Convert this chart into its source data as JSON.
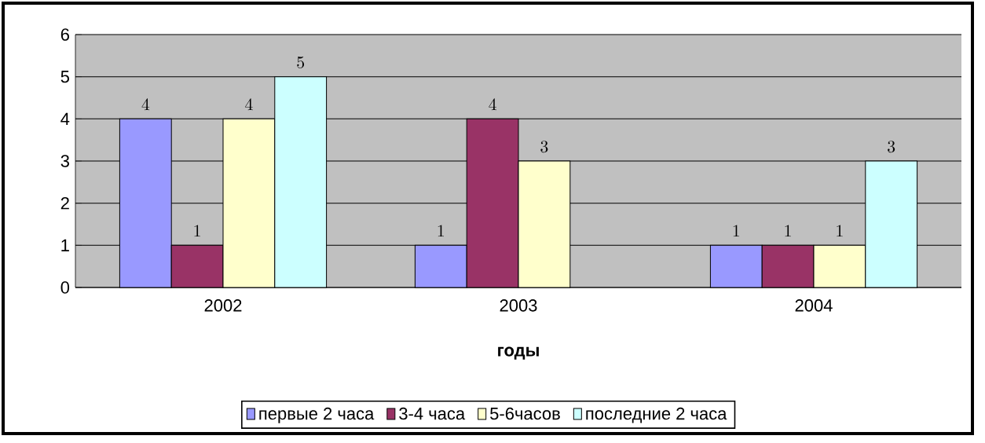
{
  "chart_data": {
    "type": "bar",
    "xlabel": "годы",
    "categories": [
      "2002",
      "2003",
      "2004"
    ],
    "series": [
      {
        "name": "первые 2 часа",
        "color": "#9999ff",
        "values": [
          4,
          1,
          1
        ]
      },
      {
        "name": "3-4 часа",
        "color": "#993366",
        "values": [
          1,
          4,
          1
        ]
      },
      {
        "name": "5-6часов",
        "color": "#ffffcc",
        "values": [
          4,
          3,
          1
        ]
      },
      {
        "name": "последние 2 часа",
        "color": "#ccffff",
        "values": [
          5,
          null,
          3
        ]
      }
    ],
    "ylim": [
      0,
      6
    ],
    "yticks": [
      0,
      1,
      2,
      3,
      4,
      5,
      6
    ],
    "grid": "y",
    "legend": "bottom",
    "data_labels": true
  }
}
